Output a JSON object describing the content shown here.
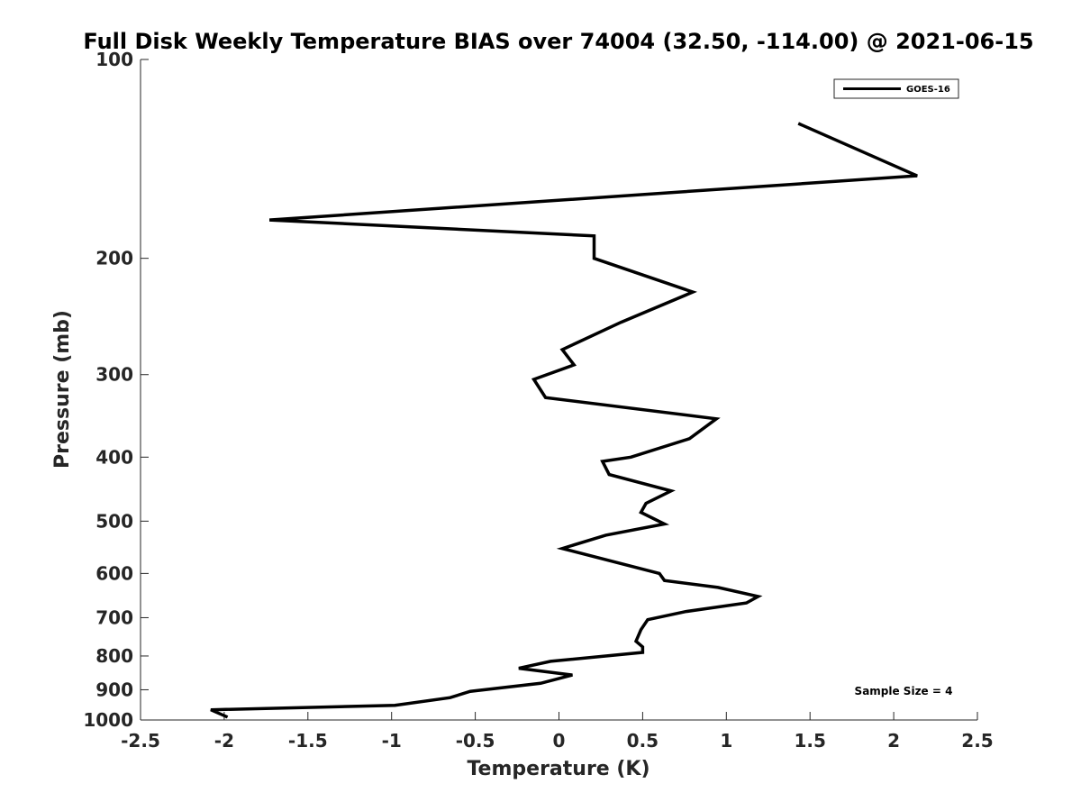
{
  "chart_data": {
    "type": "line",
    "title": "Full Disk Weekly Temperature BIAS over 74004 (32.50, -114.00) @ 2021-06-15",
    "xlabel": "Temperature (K)",
    "ylabel": "Pressure (mb)",
    "xlim": [
      -2.5,
      2.5
    ],
    "ylim": [
      100,
      1000
    ],
    "y_scale": "log",
    "y_reversed": true,
    "grid": false,
    "legend_position": "top-right",
    "x_ticks": [
      -2.5,
      -2,
      -1.5,
      -1,
      -0.5,
      0,
      0.5,
      1,
      1.5,
      2,
      2.5
    ],
    "x_tick_labels": [
      "-2.5",
      "-2",
      "-1.5",
      "-1",
      "-0.5",
      "0",
      "0.5",
      "1",
      "1.5",
      "2",
      "2.5"
    ],
    "y_ticks": [
      100,
      200,
      300,
      400,
      500,
      600,
      700,
      800,
      900,
      1000
    ],
    "y_tick_labels": [
      "100",
      "200",
      "300",
      "400",
      "500",
      "600",
      "700",
      "800",
      "900",
      "1000"
    ],
    "series": [
      {
        "name": "GOES-16",
        "color": "#000000",
        "points": [
          [
            1.43,
            125
          ],
          [
            2.14,
            150
          ],
          [
            -1.73,
            175
          ],
          [
            0.21,
            185
          ],
          [
            0.21,
            200
          ],
          [
            0.8,
            225
          ],
          [
            0.37,
            250
          ],
          [
            0.02,
            275
          ],
          [
            0.09,
            290
          ],
          [
            -0.15,
            305
          ],
          [
            -0.08,
            325
          ],
          [
            0.94,
            350
          ],
          [
            0.78,
            375
          ],
          [
            0.43,
            400
          ],
          [
            0.26,
            406
          ],
          [
            0.3,
            425
          ],
          [
            0.67,
            450
          ],
          [
            0.52,
            470
          ],
          [
            0.49,
            485
          ],
          [
            0.63,
            505
          ],
          [
            0.28,
            525
          ],
          [
            0.02,
            550
          ],
          [
            0.6,
            600
          ],
          [
            0.63,
            615
          ],
          [
            0.95,
            630
          ],
          [
            1.19,
            650
          ],
          [
            1.12,
            665
          ],
          [
            0.76,
            685
          ],
          [
            0.53,
            705
          ],
          [
            0.49,
            730
          ],
          [
            0.46,
            760
          ],
          [
            0.5,
            775
          ],
          [
            0.5,
            790
          ],
          [
            -0.05,
            815
          ],
          [
            -0.24,
            835
          ],
          [
            0.08,
            855
          ],
          [
            -0.11,
            880
          ],
          [
            -0.53,
            905
          ],
          [
            -0.65,
            925
          ],
          [
            -0.98,
            950
          ],
          [
            -2.08,
            965
          ],
          [
            -1.98,
            990
          ]
        ]
      }
    ],
    "annotations": [
      "Sample Size = 4"
    ]
  }
}
